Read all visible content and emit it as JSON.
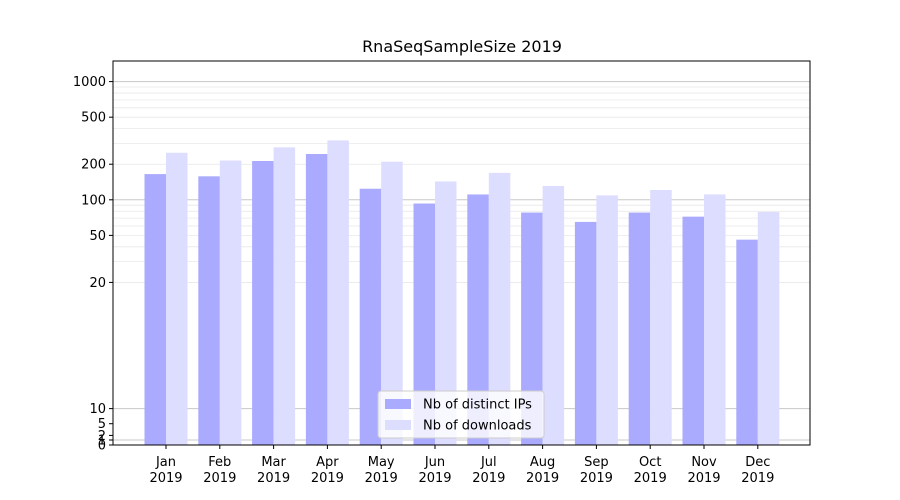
{
  "chart_data": {
    "type": "bar",
    "title": "RnaSeqSampleSize 2019",
    "xlabel": "",
    "ylabel": "",
    "yscale": "symlog",
    "ylim": [
      0,
      1300
    ],
    "yticks": [
      0,
      1,
      2,
      5,
      10,
      20,
      50,
      100,
      200,
      500,
      1000
    ],
    "categories": [
      "Jan\n2019",
      "Feb\n2019",
      "Mar\n2019",
      "Apr\n2019",
      "May\n2019",
      "Jun\n2019",
      "Jul\n2019",
      "Aug\n2019",
      "Sep\n2019",
      "Oct\n2019",
      "Nov\n2019",
      "Dec\n2019"
    ],
    "series": [
      {
        "name": "Nb of distinct IPs",
        "color": "#aaaaff",
        "values": [
          165,
          158,
          213,
          244,
          124,
          93,
          111,
          78,
          65,
          78,
          72,
          46
        ]
      },
      {
        "name": "Nb of downloads",
        "color": "#ddddff",
        "values": [
          250,
          215,
          278,
          318,
          210,
          143,
          169,
          131,
          109,
          121,
          111,
          79
        ]
      }
    ],
    "grid": true,
    "legend": "bottom-center"
  }
}
